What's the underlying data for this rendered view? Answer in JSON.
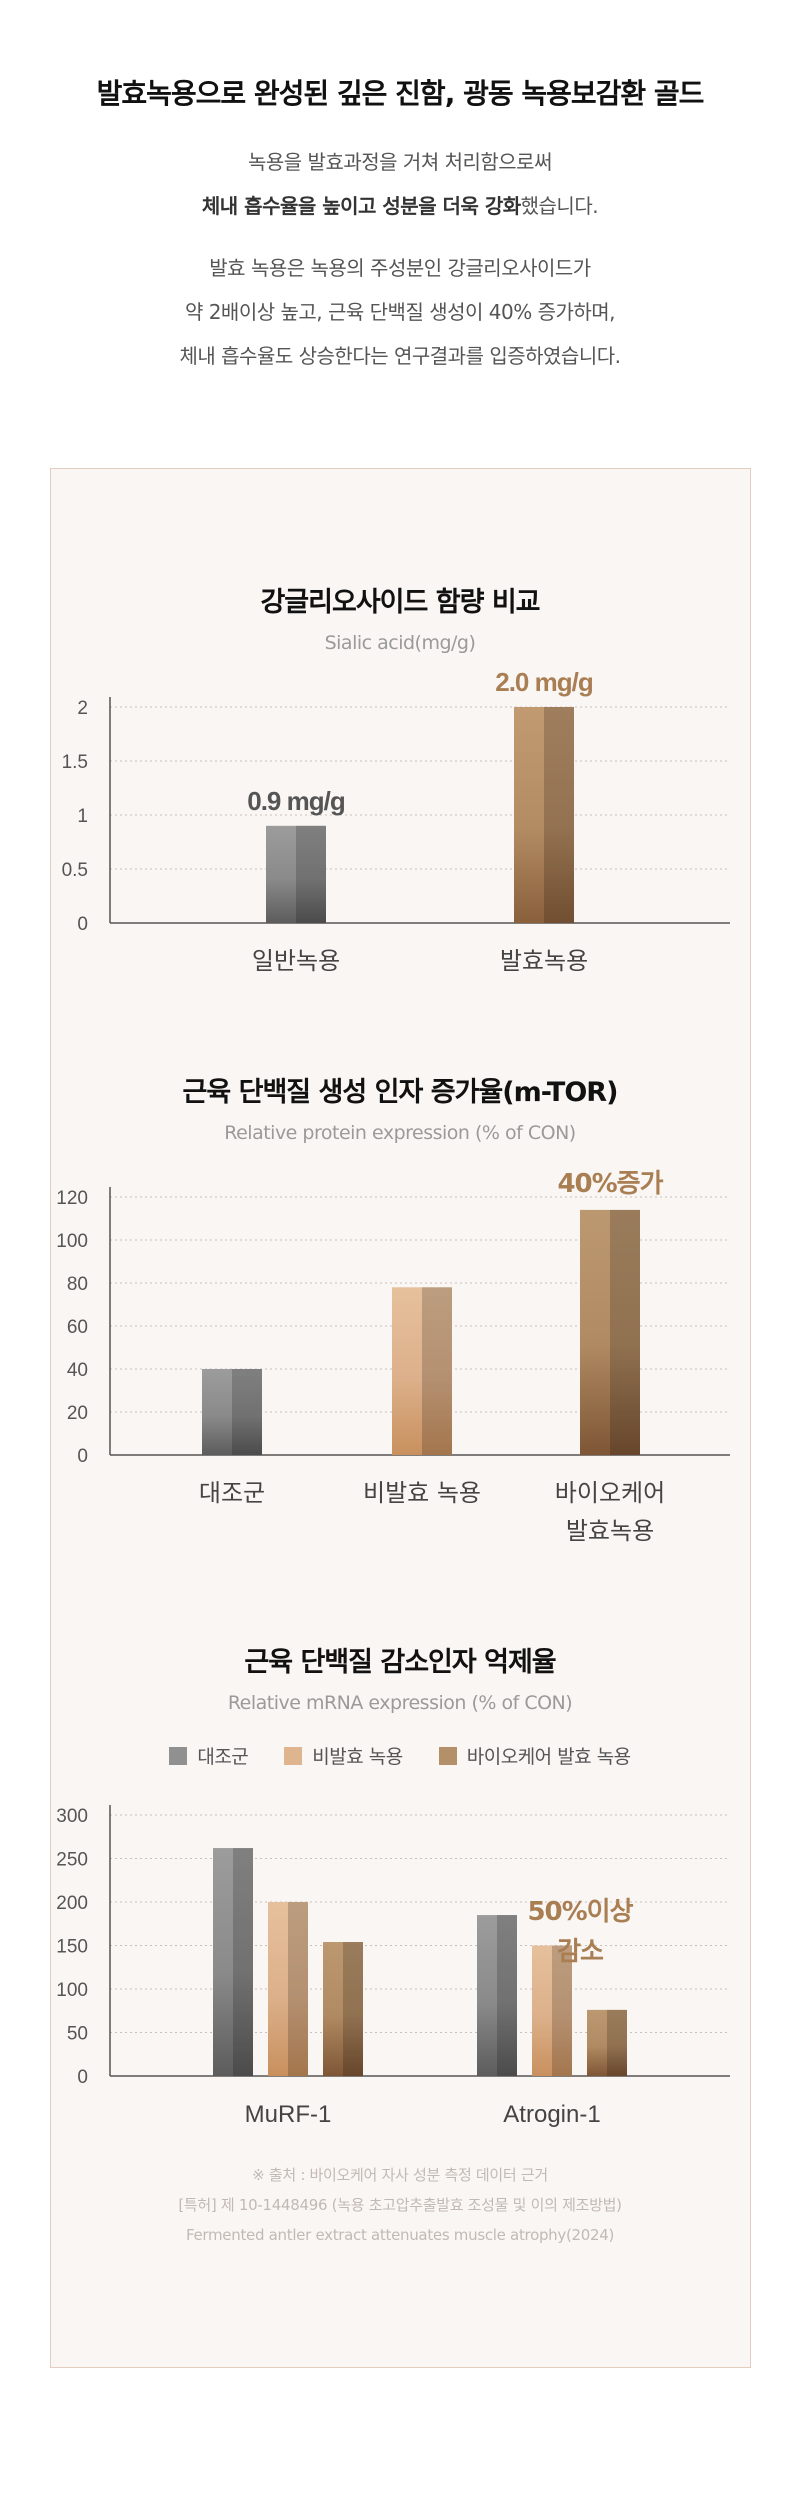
{
  "headline": "발효녹용으로 완성된 깊은 진함, 광동 녹용보감환 골드",
  "intro": {
    "line1": "녹용을 발효과정을 거쳐 처리함으로써",
    "line2_bold": "체내 흡수율을 높이고 성분을 더욱 강화",
    "line2_rest": "했습니다.",
    "line3": "발효 녹용은 녹용의 주성분인 강글리오사이드가",
    "line4": "약 2배이상 높고, 근육 단백질 생성이 40% 증가하며,",
    "line5": "체내 흡수율도 상승한다는 연구결과를 입증하였습니다."
  },
  "colors": {
    "gray": "#909090",
    "light_tan": "#dfb58f",
    "brown": "#b49068",
    "accent_text": "#a97e52",
    "panel_border": "#e3cdbf"
  },
  "chart_data": [
    {
      "type": "bar",
      "title": "강글리오사이드 함량 비교",
      "subtitle": "Sialic acid(mg/g)",
      "categories": [
        "일반녹용",
        "발효녹용"
      ],
      "values": [
        0.9,
        2.0
      ],
      "value_labels": [
        "0.9 mg/g",
        "2.0 mg/g"
      ],
      "yticks": [
        "0",
        "0.5",
        "1",
        "1.5",
        "2"
      ],
      "ylim": [
        0,
        2
      ],
      "grid": true
    },
    {
      "type": "bar",
      "title": "근육 단백질 생성 인자 증가율(m-TOR)",
      "subtitle": "Relative protein expression (% of CON)",
      "categories": [
        "대조군",
        "비발효 녹용",
        "바이오케어 발효녹용"
      ],
      "category_lines": [
        [
          "대조군"
        ],
        [
          "비발효 녹용"
        ],
        [
          "바이오케어",
          "발효녹용"
        ]
      ],
      "values": [
        40,
        78,
        114
      ],
      "annotation": "40%증가",
      "yticks": [
        "0",
        "20",
        "40",
        "60",
        "80",
        "100",
        "120"
      ],
      "ylim": [
        0,
        120
      ],
      "grid": true
    },
    {
      "type": "bar",
      "title": "근육 단백질 감소인자 억제율",
      "subtitle": "Relative mRNA expression (% of CON)",
      "categories": [
        "MuRF-1",
        "Atrogin-1"
      ],
      "series": [
        {
          "name": "대조군",
          "values": [
            262,
            185
          ]
        },
        {
          "name": "비발효 녹용",
          "values": [
            200,
            150
          ]
        },
        {
          "name": "바이오케어 발효 녹용",
          "values": [
            154,
            76
          ]
        }
      ],
      "annotation_lines": [
        "50%이상",
        "감소"
      ],
      "yticks": [
        "0",
        "50",
        "100",
        "150",
        "200",
        "250",
        "300"
      ],
      "ylim": [
        0,
        300
      ],
      "legend": "top-center",
      "grid": true
    }
  ],
  "source": {
    "line1": "※ 출처 : 바이오케어 자사 성분 측정 데이터 근거",
    "line2": "[특허] 제 10-1448496 (녹용 초고압추출발효 조성물 및 이의 제조방법)",
    "line3": "Fermented antler extract attenuates muscle atrophy(2024)"
  }
}
